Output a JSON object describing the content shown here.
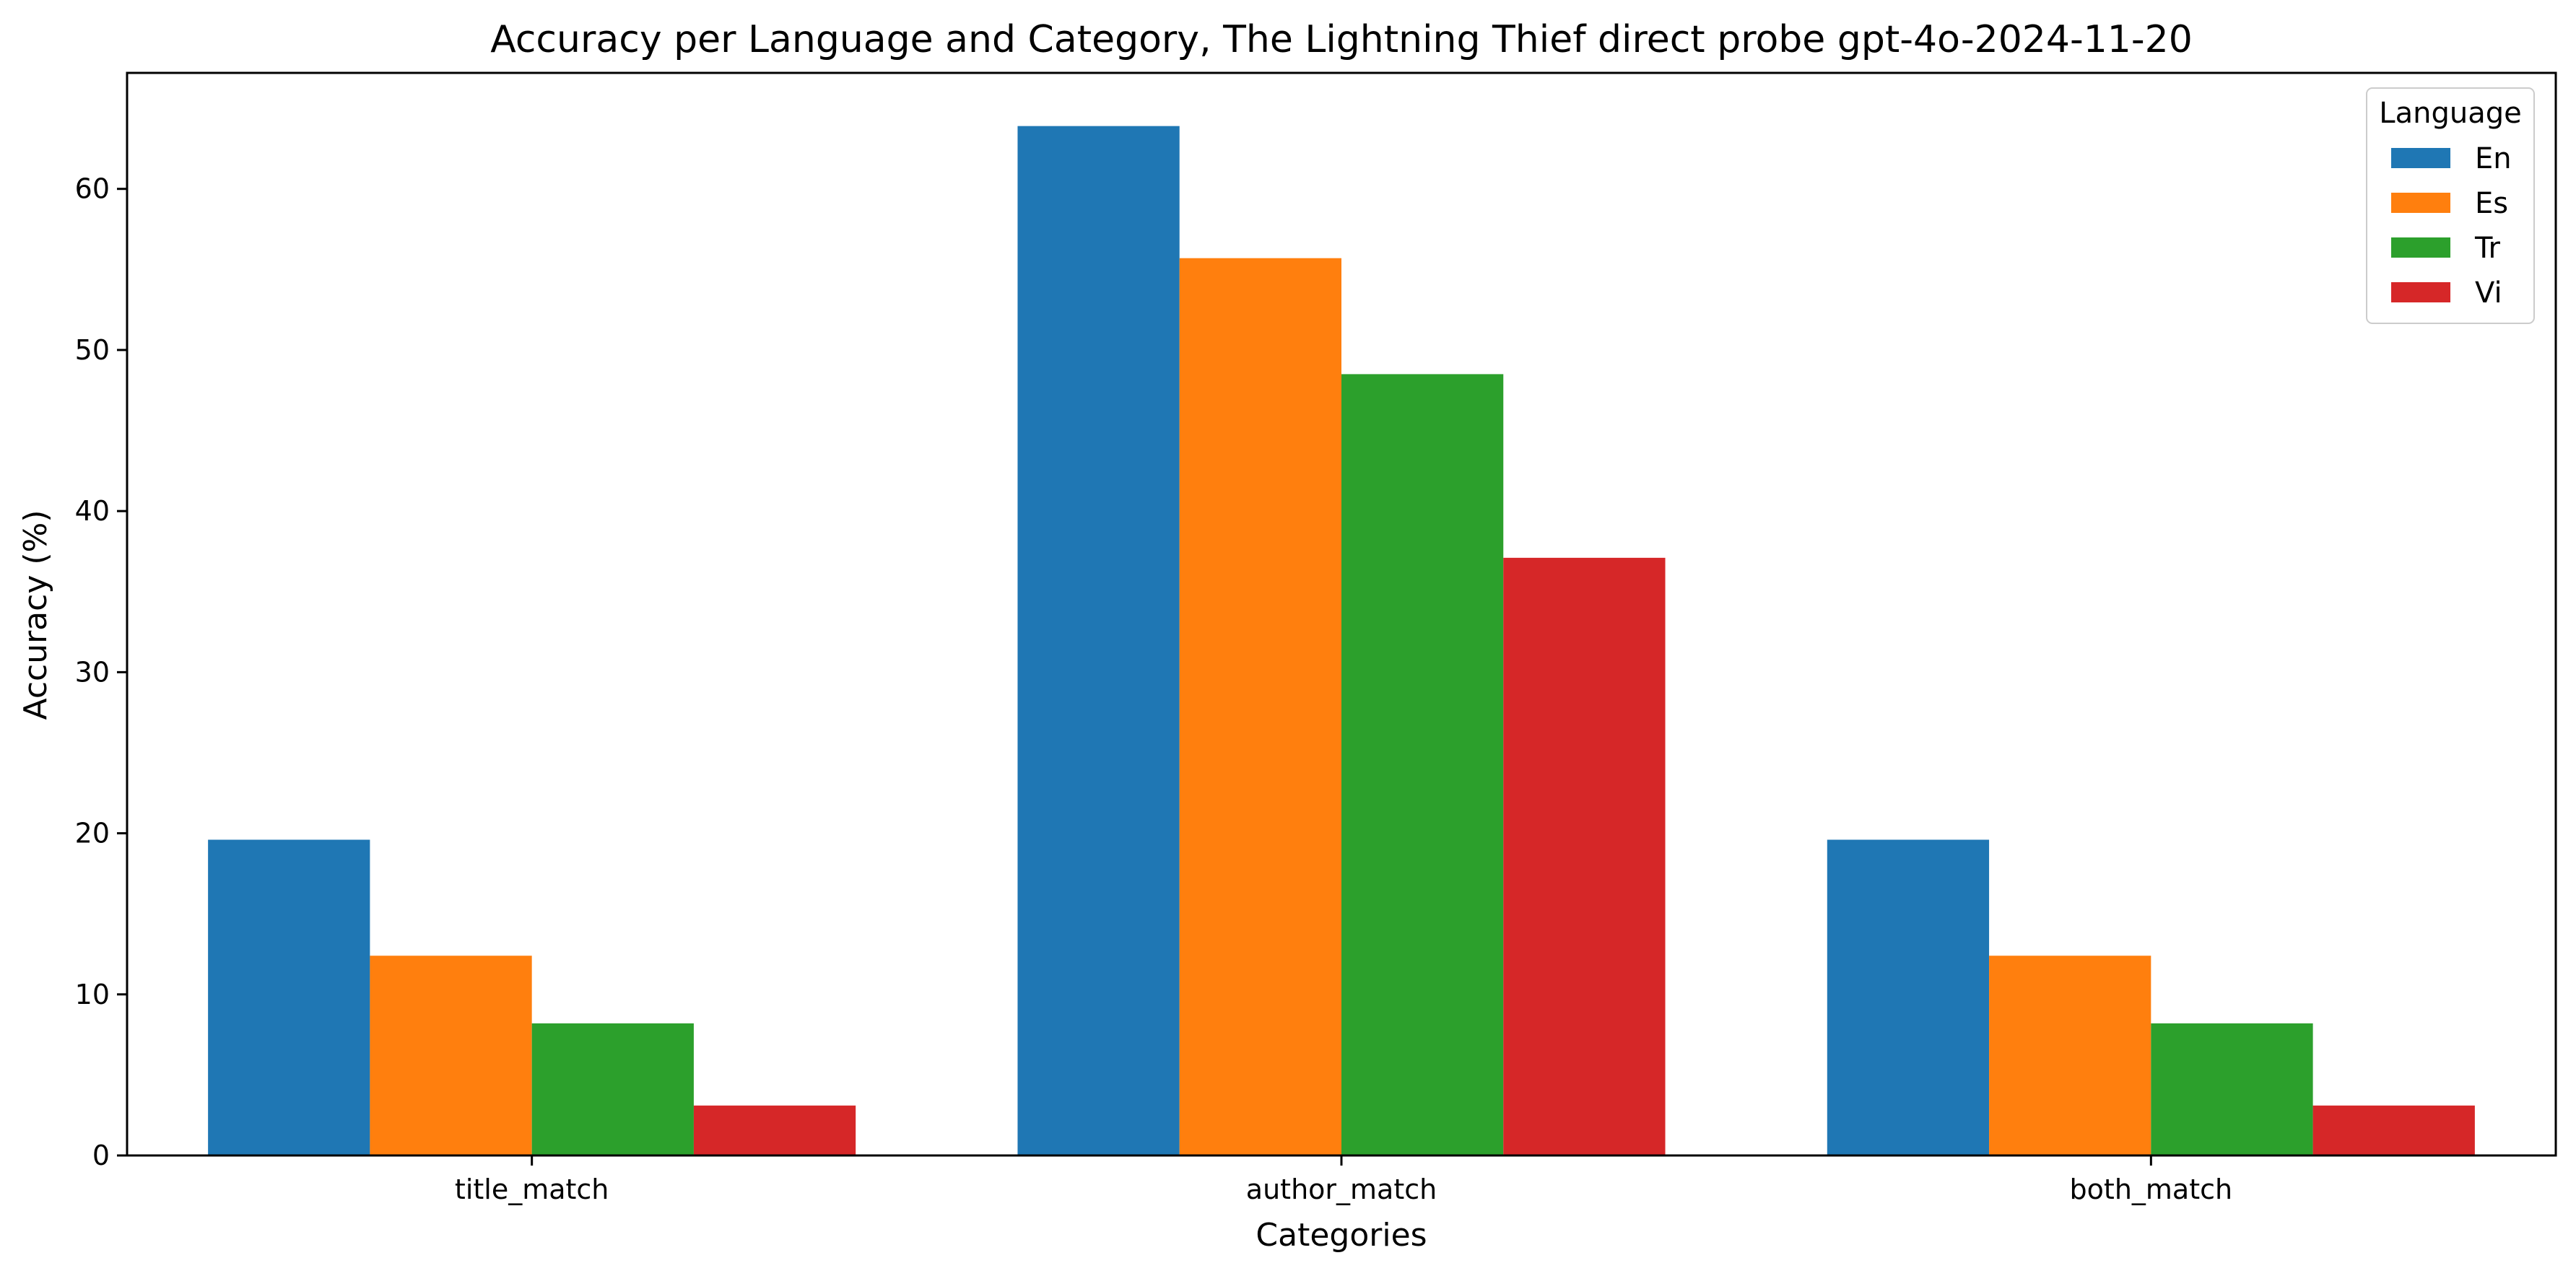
{
  "chart_data": {
    "type": "bar",
    "title": "Accuracy per Language and Category, The Lightning Thief direct probe gpt-4o-2024-11-20",
    "xlabel": "Categories",
    "ylabel": "Accuracy (%)",
    "categories": [
      "title_match",
      "author_match",
      "both_match"
    ],
    "series": [
      {
        "name": "En",
        "values": [
          19.6,
          63.9,
          19.6
        ],
        "color": "#1f77b4"
      },
      {
        "name": "Es",
        "values": [
          12.4,
          55.7,
          12.4
        ],
        "color": "#ff7f0e"
      },
      {
        "name": "Tr",
        "values": [
          8.2,
          48.5,
          8.2
        ],
        "color": "#2ca02c"
      },
      {
        "name": "Vi",
        "values": [
          3.1,
          37.1,
          3.1
        ],
        "color": "#d62728"
      }
    ],
    "ylim": [
      0,
      67.2
    ],
    "yticks": [
      0,
      10,
      20,
      30,
      40,
      50,
      60
    ],
    "grid": false,
    "legend": {
      "title": "Language",
      "placement": "top-right"
    }
  }
}
